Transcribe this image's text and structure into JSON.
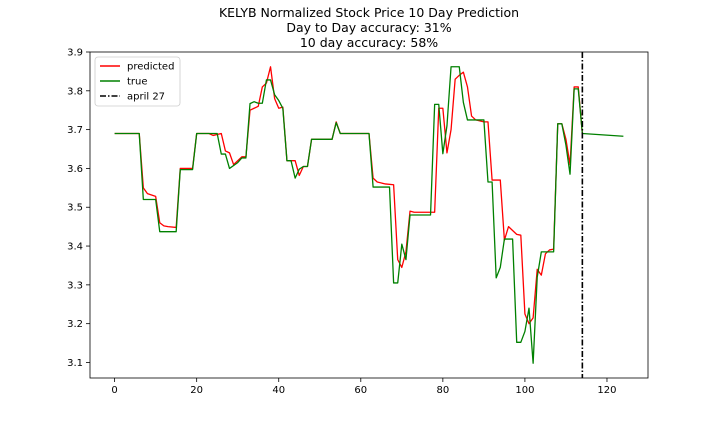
{
  "chart_data": {
    "type": "line",
    "title_lines": [
      "KELYB Normalized Stock Price 10 Day Prediction",
      "Day to Day accuracy: 31%",
      "10 day accuracy: 58%"
    ],
    "xlabel": "",
    "ylabel": "",
    "xlim": [
      -6,
      130
    ],
    "ylim": [
      3.06,
      3.9
    ],
    "xticks": [
      0,
      20,
      40,
      60,
      80,
      100,
      120
    ],
    "yticks": [
      3.1,
      3.2,
      3.3,
      3.4,
      3.5,
      3.6,
      3.7,
      3.8,
      3.9
    ],
    "grid": false,
    "legend_position": "top-left",
    "series": [
      {
        "name": "predicted",
        "color": "#ff0000",
        "points": [
          [
            0,
            3.69
          ],
          [
            6,
            3.69
          ],
          [
            7,
            3.55
          ],
          [
            8,
            3.535
          ],
          [
            10,
            3.528
          ],
          [
            11,
            3.46
          ],
          [
            12,
            3.452
          ],
          [
            13,
            3.45
          ],
          [
            15,
            3.448
          ],
          [
            16,
            3.6
          ],
          [
            19,
            3.6
          ],
          [
            20,
            3.69
          ],
          [
            23,
            3.69
          ],
          [
            24,
            3.685
          ],
          [
            26,
            3.69
          ],
          [
            27,
            3.645
          ],
          [
            28,
            3.64
          ],
          [
            29,
            3.61
          ],
          [
            30,
            3.62
          ],
          [
            31,
            3.63
          ],
          [
            32,
            3.63
          ],
          [
            33,
            3.75
          ],
          [
            34,
            3.755
          ],
          [
            35,
            3.76
          ],
          [
            36,
            3.81
          ],
          [
            37,
            3.82
          ],
          [
            38,
            3.862
          ],
          [
            39,
            3.78
          ],
          [
            40,
            3.755
          ],
          [
            41,
            3.758
          ],
          [
            42,
            3.62
          ],
          [
            44,
            3.62
          ],
          [
            45,
            3.582
          ],
          [
            46,
            3.605
          ],
          [
            47,
            3.605
          ],
          [
            48,
            3.675
          ],
          [
            53,
            3.675
          ],
          [
            54,
            3.72
          ],
          [
            55,
            3.69
          ],
          [
            62,
            3.69
          ],
          [
            63,
            3.575
          ],
          [
            64,
            3.565
          ],
          [
            66,
            3.56
          ],
          [
            68,
            3.558
          ],
          [
            69,
            3.365
          ],
          [
            70,
            3.345
          ],
          [
            71,
            3.385
          ],
          [
            72,
            3.49
          ],
          [
            73,
            3.487
          ],
          [
            78,
            3.487
          ],
          [
            79,
            3.755
          ],
          [
            80,
            3.755
          ],
          [
            81,
            3.64
          ],
          [
            82,
            3.7
          ],
          [
            83,
            3.83
          ],
          [
            84,
            3.84
          ],
          [
            85,
            3.848
          ],
          [
            86,
            3.81
          ],
          [
            87,
            3.735
          ],
          [
            88,
            3.725
          ],
          [
            90,
            3.72
          ],
          [
            91,
            3.72
          ],
          [
            92,
            3.57
          ],
          [
            94,
            3.57
          ],
          [
            95,
            3.415
          ],
          [
            96,
            3.45
          ],
          [
            97,
            3.44
          ],
          [
            98,
            3.43
          ],
          [
            99,
            3.428
          ],
          [
            100,
            3.225
          ],
          [
            101,
            3.2
          ],
          [
            102,
            3.215
          ],
          [
            103,
            3.34
          ],
          [
            104,
            3.325
          ],
          [
            105,
            3.38
          ],
          [
            106,
            3.39
          ],
          [
            107,
            3.392
          ],
          [
            108,
            3.715
          ],
          [
            109,
            3.715
          ],
          [
            110,
            3.675
          ],
          [
            111,
            3.61
          ],
          [
            112,
            3.81
          ],
          [
            113,
            3.81
          ],
          [
            114,
            3.69
          ]
        ]
      },
      {
        "name": "true",
        "color": "#008000",
        "points": [
          [
            0,
            3.69
          ],
          [
            5,
            3.69
          ],
          [
            6,
            3.69
          ],
          [
            7,
            3.52
          ],
          [
            10,
            3.52
          ],
          [
            11,
            3.437
          ],
          [
            15,
            3.437
          ],
          [
            16,
            3.597
          ],
          [
            19,
            3.597
          ],
          [
            20,
            3.69
          ],
          [
            22,
            3.69
          ],
          [
            23,
            3.69
          ],
          [
            24,
            3.69
          ],
          [
            25,
            3.69
          ],
          [
            26,
            3.637
          ],
          [
            27,
            3.637
          ],
          [
            28,
            3.6
          ],
          [
            30,
            3.615
          ],
          [
            31,
            3.627
          ],
          [
            32,
            3.627
          ],
          [
            33,
            3.767
          ],
          [
            34,
            3.772
          ],
          [
            35,
            3.768
          ],
          [
            36,
            3.768
          ],
          [
            37,
            3.828
          ],
          [
            38,
            3.828
          ],
          [
            39,
            3.79
          ],
          [
            40,
            3.775
          ],
          [
            41,
            3.755
          ],
          [
            42,
            3.62
          ],
          [
            43,
            3.62
          ],
          [
            44,
            3.575
          ],
          [
            45,
            3.598
          ],
          [
            46,
            3.605
          ],
          [
            47,
            3.605
          ],
          [
            48,
            3.675
          ],
          [
            53,
            3.675
          ],
          [
            54,
            3.718
          ],
          [
            55,
            3.69
          ],
          [
            62,
            3.69
          ],
          [
            63,
            3.552
          ],
          [
            67,
            3.552
          ],
          [
            68,
            3.305
          ],
          [
            69,
            3.305
          ],
          [
            70,
            3.405
          ],
          [
            71,
            3.365
          ],
          [
            72,
            3.48
          ],
          [
            73,
            3.48
          ],
          [
            77,
            3.48
          ],
          [
            78,
            3.765
          ],
          [
            79,
            3.765
          ],
          [
            80,
            3.638
          ],
          [
            81,
            3.71
          ],
          [
            82,
            3.862
          ],
          [
            84,
            3.862
          ],
          [
            85,
            3.77
          ],
          [
            86,
            3.725
          ],
          [
            90,
            3.725
          ],
          [
            91,
            3.565
          ],
          [
            92,
            3.565
          ],
          [
            93,
            3.318
          ],
          [
            94,
            3.345
          ],
          [
            95,
            3.418
          ],
          [
            96,
            3.418
          ],
          [
            97,
            3.418
          ],
          [
            98,
            3.152
          ],
          [
            99,
            3.152
          ],
          [
            100,
            3.18
          ],
          [
            101,
            3.24
          ],
          [
            102,
            3.098
          ],
          [
            103,
            3.32
          ],
          [
            104,
            3.385
          ],
          [
            105,
            3.385
          ],
          [
            106,
            3.385
          ],
          [
            107,
            3.385
          ],
          [
            108,
            3.715
          ],
          [
            109,
            3.715
          ],
          [
            110,
            3.66
          ],
          [
            111,
            3.585
          ],
          [
            112,
            3.805
          ],
          [
            113,
            3.805
          ],
          [
            114,
            3.69
          ],
          [
            124,
            3.683
          ]
        ]
      },
      {
        "name": "april 27",
        "color": "#000000",
        "kind": "vline",
        "x": 114
      }
    ]
  }
}
